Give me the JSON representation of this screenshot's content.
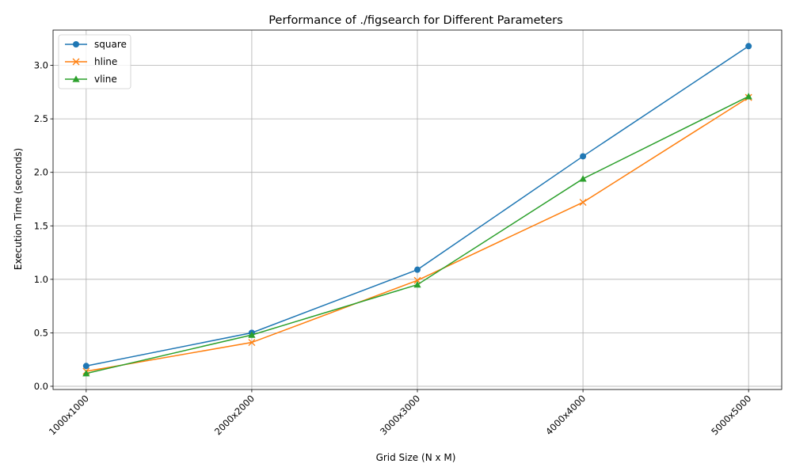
{
  "chart_data": {
    "type": "line",
    "title": "Performance of ./figsearch for Different Parameters",
    "xlabel": "Grid Size (N x M)",
    "ylabel": "Execution Time (seconds)",
    "categories": [
      "1000x1000",
      "2000x2000",
      "3000x3000",
      "4000x4000",
      "5000x5000"
    ],
    "series": [
      {
        "name": "square",
        "color": "#1f77b4",
        "marker": "circle",
        "values": [
          0.19,
          0.5,
          1.09,
          2.15,
          3.18
        ]
      },
      {
        "name": "hline",
        "color": "#ff7f0e",
        "marker": "x",
        "values": [
          0.14,
          0.41,
          0.99,
          1.72,
          2.7
        ]
      },
      {
        "name": "vline",
        "color": "#2ca02c",
        "marker": "triangle",
        "values": [
          0.12,
          0.48,
          0.95,
          1.94,
          2.71
        ]
      }
    ],
    "yticks": [
      0.0,
      0.5,
      1.0,
      1.5,
      2.0,
      2.5,
      3.0
    ],
    "ytick_labels": [
      "0.0",
      "0.5",
      "1.0",
      "1.5",
      "2.0",
      "2.5",
      "3.0"
    ],
    "ylim": [
      -0.03,
      3.33
    ],
    "grid": true,
    "legend": "top-left"
  }
}
